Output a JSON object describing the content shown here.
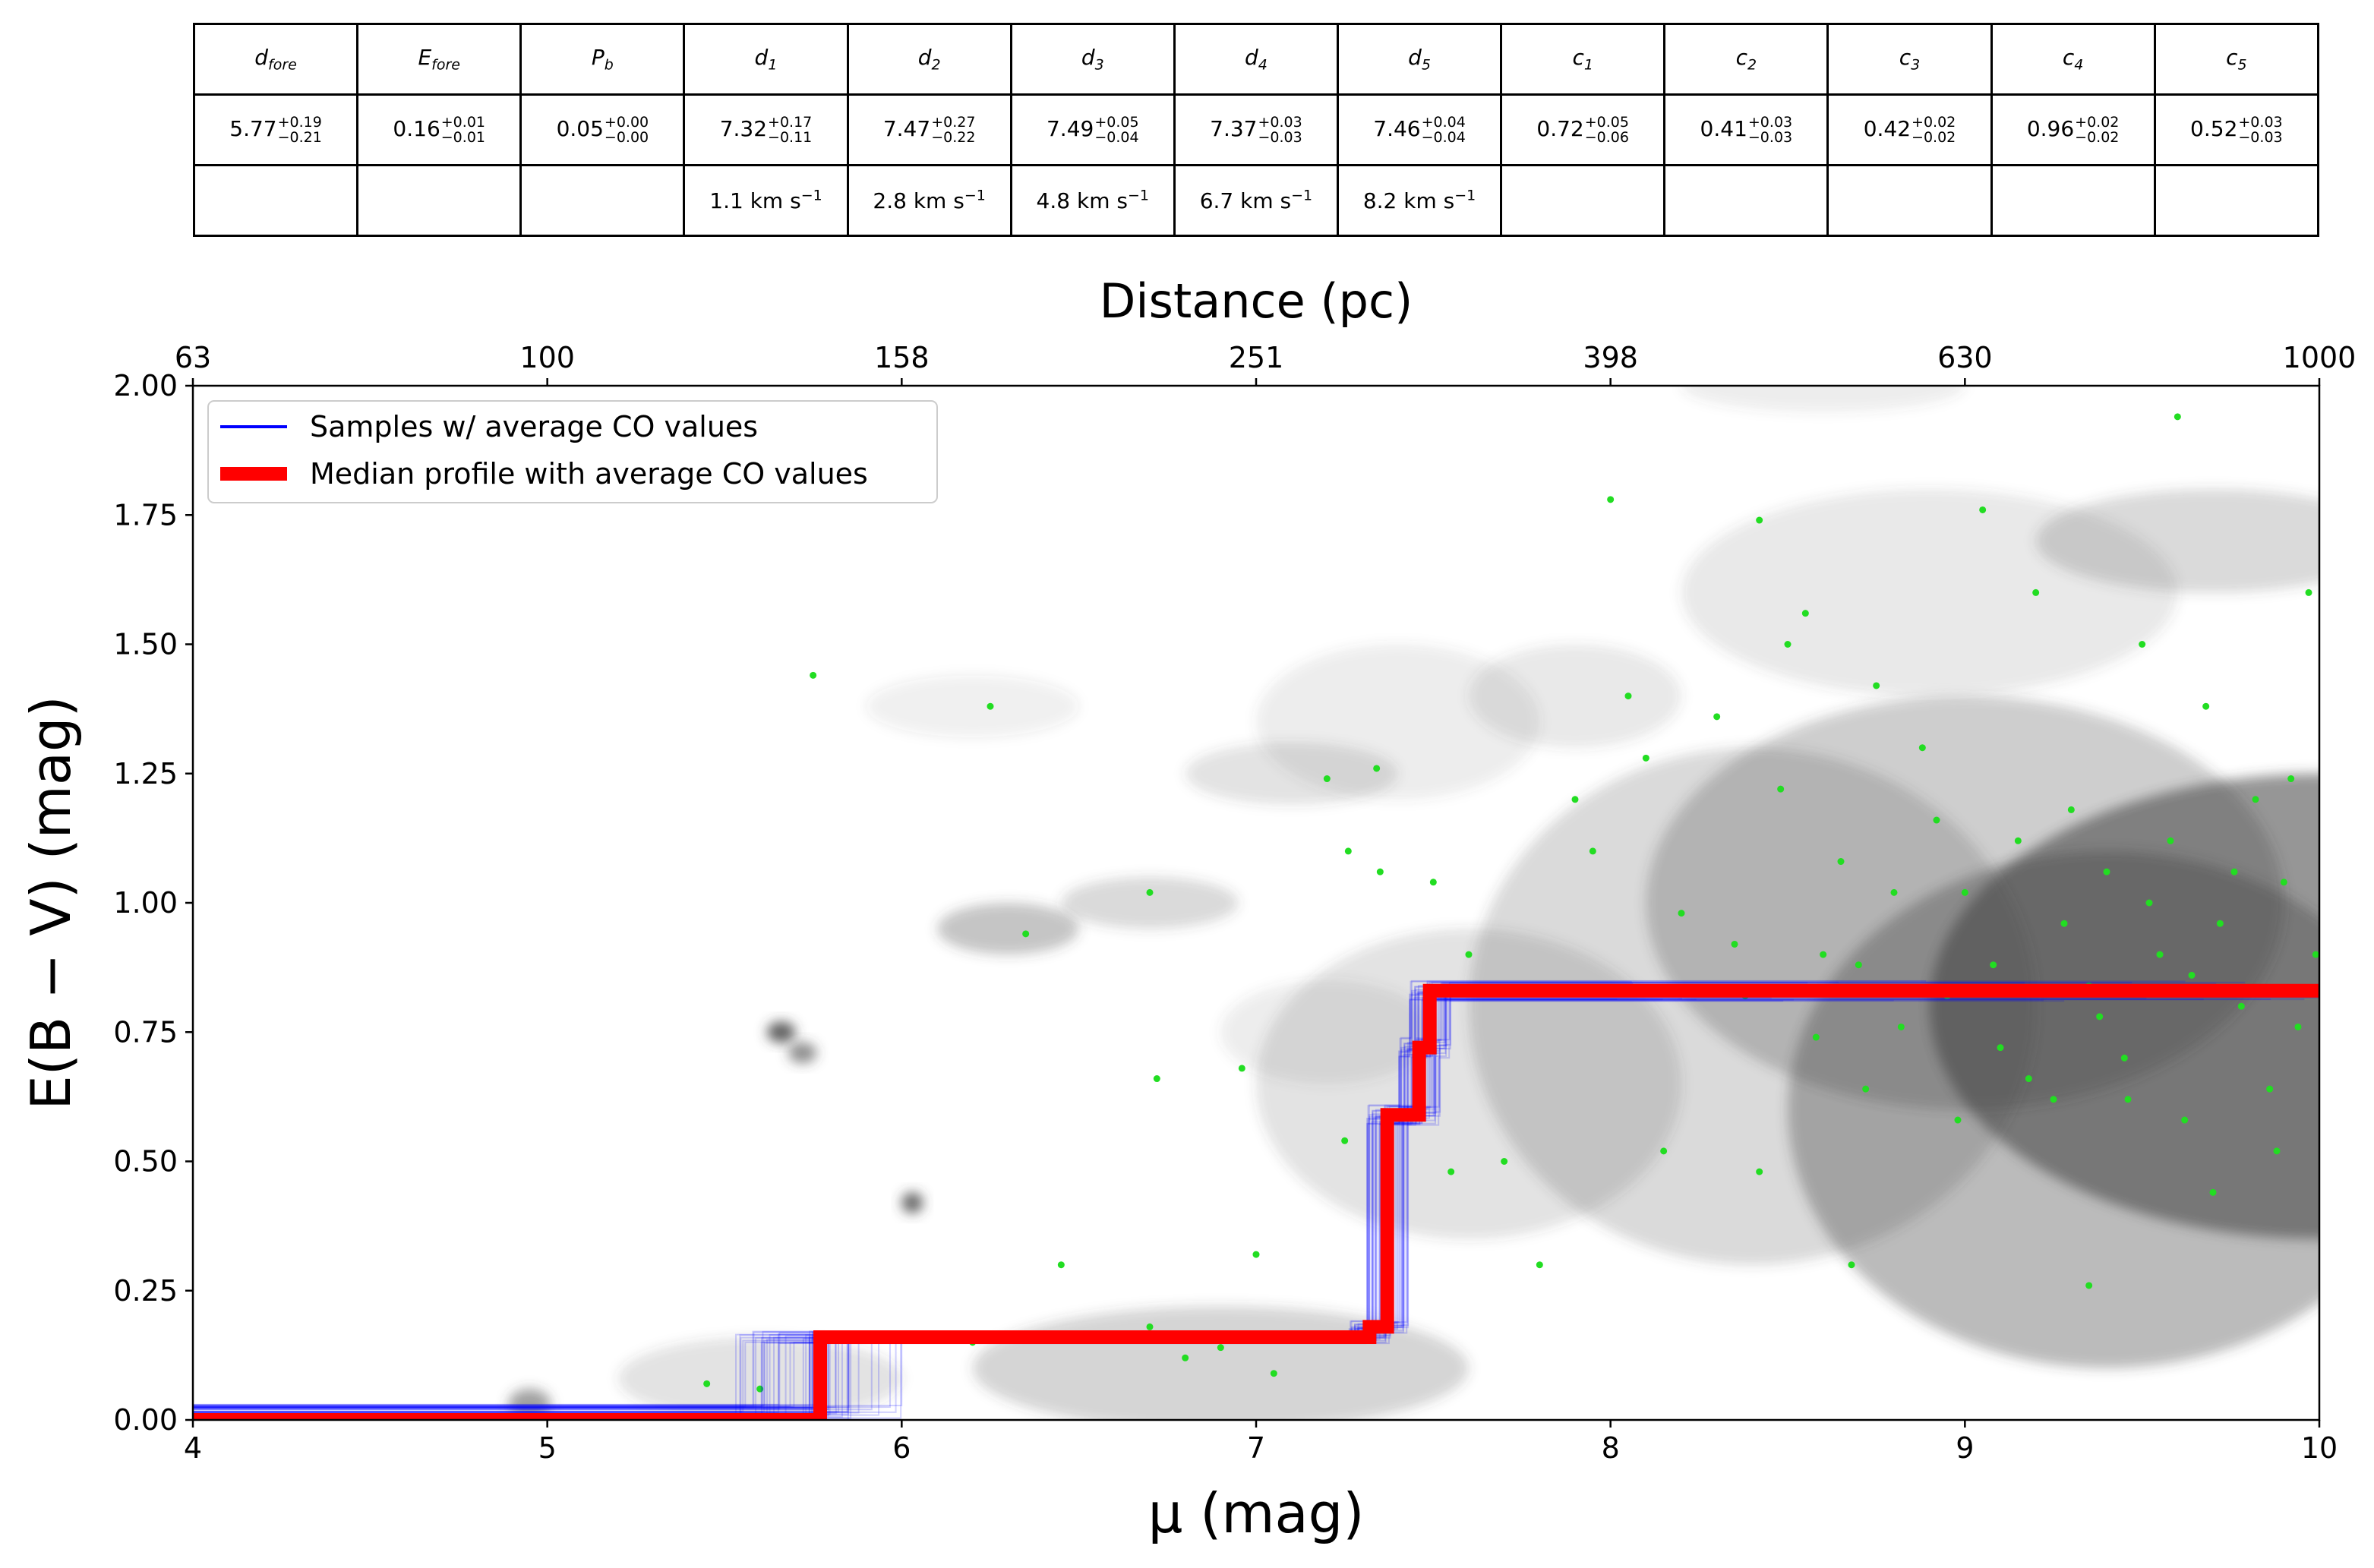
{
  "table": {
    "headers": [
      {
        "base": "d",
        "sub": "fore"
      },
      {
        "base": "E",
        "sub": "fore"
      },
      {
        "base": "P",
        "sub": "b"
      },
      {
        "base": "d",
        "sub": "1"
      },
      {
        "base": "d",
        "sub": "2"
      },
      {
        "base": "d",
        "sub": "3"
      },
      {
        "base": "d",
        "sub": "4"
      },
      {
        "base": "d",
        "sub": "5"
      },
      {
        "base": "c",
        "sub": "1"
      },
      {
        "base": "c",
        "sub": "2"
      },
      {
        "base": "c",
        "sub": "3"
      },
      {
        "base": "c",
        "sub": "4"
      },
      {
        "base": "c",
        "sub": "5"
      }
    ],
    "values": [
      {
        "v": "5.77",
        "plus": "+0.19",
        "minus": "−0.21"
      },
      {
        "v": "0.16",
        "plus": "+0.01",
        "minus": "−0.01"
      },
      {
        "v": "0.05",
        "plus": "+0.00",
        "minus": "−0.00"
      },
      {
        "v": "7.32",
        "plus": "+0.17",
        "minus": "−0.11"
      },
      {
        "v": "7.47",
        "plus": "+0.27",
        "minus": "−0.22"
      },
      {
        "v": "7.49",
        "plus": "+0.05",
        "minus": "−0.04"
      },
      {
        "v": "7.37",
        "plus": "+0.03",
        "minus": "−0.03"
      },
      {
        "v": "7.46",
        "plus": "+0.04",
        "minus": "−0.04"
      },
      {
        "v": "0.72",
        "plus": "+0.05",
        "minus": "−0.06"
      },
      {
        "v": "0.41",
        "plus": "+0.03",
        "minus": "−0.03"
      },
      {
        "v": "0.42",
        "plus": "+0.02",
        "minus": "−0.02"
      },
      {
        "v": "0.96",
        "plus": "+0.02",
        "minus": "−0.02"
      },
      {
        "v": "0.52",
        "plus": "+0.03",
        "minus": "−0.03"
      }
    ],
    "velocities": [
      "",
      "",
      "",
      "1.1 km s",
      "2.8 km s",
      "4.8 km s",
      "6.7 km s",
      "8.2 km s",
      "",
      "",
      "",
      "",
      ""
    ],
    "velocity_unit_exp": "−1"
  },
  "chart_data": {
    "type": "line",
    "title": "",
    "xlabel": "μ (mag)",
    "ylabel": "E(B − V) (mag)",
    "top_xlabel": "Distance (pc)",
    "xlim": [
      4,
      10
    ],
    "ylim": [
      0,
      2
    ],
    "x_ticks": [
      4,
      5,
      6,
      7,
      8,
      9,
      10
    ],
    "y_ticks": [
      0.0,
      0.25,
      0.5,
      0.75,
      1.0,
      1.25,
      1.5,
      1.75,
      2.0
    ],
    "y_tick_labels": [
      "0.00",
      "0.25",
      "0.50",
      "0.75",
      "1.00",
      "1.25",
      "1.50",
      "1.75",
      "2.00"
    ],
    "top_ticks_mu": [
      4,
      5,
      6,
      7,
      8,
      9,
      10
    ],
    "top_tick_labels": [
      "63",
      "100",
      "158",
      "251",
      "398",
      "630",
      "1000"
    ],
    "legend_position": "top-left",
    "legend": [
      {
        "label": "Samples  w/ average CO values",
        "color": "#0000ff"
      },
      {
        "label": "Median profile with average CO values",
        "color": "#ff0000"
      }
    ],
    "median_profile": {
      "name": "Median profile with average CO values",
      "color": "#ff0000",
      "x": [
        4.0,
        5.77,
        5.77,
        7.32,
        7.32,
        7.37,
        7.37,
        7.46,
        7.46,
        7.49,
        7.49,
        10.0
      ],
      "y": [
        0.0,
        0.0,
        0.16,
        0.16,
        0.18,
        0.18,
        0.59,
        0.59,
        0.72,
        0.72,
        0.83,
        0.83
      ]
    },
    "samples": {
      "name": "Samples  w/ average CO values",
      "color": "#0000ff",
      "count": 60
    },
    "density_background": [
      {
        "x": 10.0,
        "y": 0.8,
        "sx": 1.1,
        "sy": 0.45,
        "w": 0.55
      },
      {
        "x": 9.4,
        "y": 0.6,
        "sx": 0.9,
        "sy": 0.5,
        "w": 0.35
      },
      {
        "x": 9.0,
        "y": 1.0,
        "sx": 0.9,
        "sy": 0.4,
        "w": 0.25
      },
      {
        "x": 8.4,
        "y": 0.8,
        "sx": 0.8,
        "sy": 0.5,
        "w": 0.2
      },
      {
        "x": 7.6,
        "y": 0.65,
        "sx": 0.6,
        "sy": 0.3,
        "w": 0.15
      },
      {
        "x": 6.9,
        "y": 0.1,
        "sx": 0.7,
        "sy": 0.12,
        "w": 0.22
      },
      {
        "x": 5.6,
        "y": 0.08,
        "sx": 0.4,
        "sy": 0.08,
        "w": 0.15
      },
      {
        "x": 6.3,
        "y": 0.95,
        "sx": 0.2,
        "sy": 0.05,
        "w": 0.3
      },
      {
        "x": 6.7,
        "y": 1.0,
        "sx": 0.25,
        "sy": 0.05,
        "w": 0.2
      },
      {
        "x": 7.1,
        "y": 1.25,
        "sx": 0.3,
        "sy": 0.06,
        "w": 0.15
      },
      {
        "x": 6.2,
        "y": 1.38,
        "sx": 0.3,
        "sy": 0.06,
        "w": 0.08
      },
      {
        "x": 8.9,
        "y": 1.6,
        "sx": 0.7,
        "sy": 0.2,
        "w": 0.12
      },
      {
        "x": 9.7,
        "y": 1.7,
        "sx": 0.5,
        "sy": 0.1,
        "w": 0.2
      },
      {
        "x": 8.6,
        "y": 2.0,
        "sx": 0.4,
        "sy": 0.05,
        "w": 0.1
      },
      {
        "x": 7.4,
        "y": 1.35,
        "sx": 0.4,
        "sy": 0.15,
        "w": 0.1
      },
      {
        "x": 7.2,
        "y": 0.75,
        "sx": 0.3,
        "sy": 0.1,
        "w": 0.1
      },
      {
        "x": 7.9,
        "y": 1.4,
        "sx": 0.3,
        "sy": 0.1,
        "w": 0.12
      },
      {
        "x": 4.95,
        "y": 0.03,
        "sx": 0.06,
        "sy": 0.03,
        "w": 0.5
      },
      {
        "x": 5.66,
        "y": 0.75,
        "sx": 0.04,
        "sy": 0.02,
        "w": 0.85
      },
      {
        "x": 5.72,
        "y": 0.71,
        "sx": 0.04,
        "sy": 0.02,
        "w": 0.6
      },
      {
        "x": 6.03,
        "y": 0.42,
        "sx": 0.03,
        "sy": 0.02,
        "w": 0.8
      }
    ],
    "stars": {
      "color": "#22dd22",
      "points": [
        [
          5.75,
          1.44
        ],
        [
          6.25,
          1.38
        ],
        [
          6.35,
          0.94
        ],
        [
          6.7,
          1.02
        ],
        [
          6.72,
          0.66
        ],
        [
          6.96,
          0.68
        ],
        [
          7.2,
          1.24
        ],
        [
          7.26,
          1.1
        ],
        [
          7.34,
          1.26
        ],
        [
          7.35,
          1.06
        ],
        [
          7.5,
          1.04
        ],
        [
          7.6,
          0.9
        ],
        [
          7.25,
          0.54
        ],
        [
          7.55,
          0.48
        ],
        [
          7.7,
          0.5
        ],
        [
          7.8,
          0.3
        ],
        [
          7.9,
          1.2
        ],
        [
          7.95,
          1.1
        ],
        [
          8.0,
          1.78
        ],
        [
          8.05,
          1.4
        ],
        [
          8.1,
          1.28
        ],
        [
          8.2,
          0.98
        ],
        [
          8.3,
          1.36
        ],
        [
          8.35,
          0.92
        ],
        [
          8.42,
          1.74
        ],
        [
          8.5,
          1.5
        ],
        [
          8.55,
          1.56
        ],
        [
          8.6,
          0.9
        ],
        [
          8.65,
          1.08
        ],
        [
          8.7,
          0.88
        ],
        [
          8.75,
          1.42
        ],
        [
          8.82,
          0.76
        ],
        [
          8.88,
          1.3
        ],
        [
          8.95,
          0.82
        ],
        [
          9.0,
          1.02
        ],
        [
          9.05,
          1.76
        ],
        [
          9.1,
          0.72
        ],
        [
          9.15,
          1.12
        ],
        [
          9.2,
          1.6
        ],
        [
          9.25,
          0.62
        ],
        [
          9.3,
          1.18
        ],
        [
          9.35,
          0.84
        ],
        [
          9.4,
          1.06
        ],
        [
          9.45,
          0.7
        ],
        [
          9.5,
          1.5
        ],
        [
          9.55,
          0.9
        ],
        [
          9.6,
          1.94
        ],
        [
          9.62,
          0.58
        ],
        [
          9.68,
          1.38
        ],
        [
          9.72,
          0.96
        ],
        [
          9.78,
          0.8
        ],
        [
          9.82,
          1.2
        ],
        [
          9.86,
          0.64
        ],
        [
          9.9,
          1.04
        ],
        [
          9.94,
          0.76
        ],
        [
          9.97,
          1.6
        ],
        [
          9.99,
          0.9
        ],
        [
          9.7,
          0.44
        ],
        [
          9.35,
          0.26
        ],
        [
          8.68,
          0.3
        ],
        [
          8.42,
          0.48
        ],
        [
          8.15,
          0.52
        ],
        [
          6.8,
          0.12
        ],
        [
          6.7,
          0.18
        ],
        [
          6.9,
          0.14
        ],
        [
          7.05,
          0.09
        ],
        [
          7.15,
          0.16
        ],
        [
          6.45,
          0.3
        ],
        [
          7.0,
          0.32
        ],
        [
          5.45,
          0.07
        ],
        [
          5.6,
          0.06
        ],
        [
          6.2,
          0.15
        ],
        [
          9.52,
          1.0
        ],
        [
          9.58,
          1.12
        ],
        [
          9.64,
          0.86
        ],
        [
          9.76,
          1.06
        ],
        [
          9.88,
          0.52
        ],
        [
          9.92,
          1.24
        ],
        [
          9.46,
          0.62
        ],
        [
          9.38,
          0.78
        ],
        [
          9.28,
          0.96
        ],
        [
          9.18,
          0.66
        ],
        [
          9.08,
          0.88
        ],
        [
          8.98,
          0.58
        ],
        [
          8.92,
          1.16
        ],
        [
          8.8,
          1.02
        ],
        [
          8.72,
          0.64
        ],
        [
          8.58,
          0.74
        ],
        [
          8.48,
          1.22
        ],
        [
          8.38,
          0.82
        ]
      ]
    },
    "colors": {
      "background_low": "#ffffff",
      "background_high": "#404040"
    }
  }
}
